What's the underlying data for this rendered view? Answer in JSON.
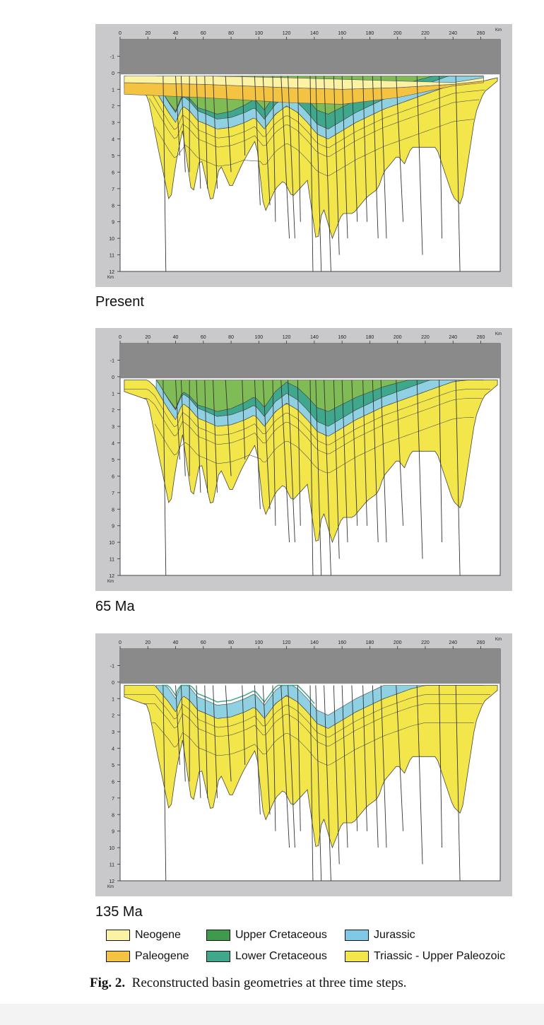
{
  "figure": {
    "axis": {
      "x_ticks": [
        "0",
        "20",
        "40",
        "60",
        "80",
        "100",
        "120",
        "140",
        "160",
        "180",
        "200",
        "220",
        "240",
        "260"
      ],
      "y_ticks": [
        "-1",
        "0",
        "1",
        "2",
        "3",
        "4",
        "5",
        "6",
        "7",
        "8",
        "9",
        "10",
        "11",
        "12"
      ],
      "x_unit": "Km",
      "y_unit": "Km"
    },
    "panels": [
      {
        "id": "present",
        "label": "Present"
      },
      {
        "id": "65ma",
        "label": "65 Ma"
      },
      {
        "id": "135ma",
        "label": "135 Ma"
      }
    ],
    "legend": [
      {
        "label": "Neogene",
        "color": "#fbf3a3"
      },
      {
        "label": "Upper Cretaceous",
        "color": "#3f9a4e"
      },
      {
        "label": "Jurassic",
        "color": "#7fc8e6"
      },
      {
        "label": "Paleogene",
        "color": "#f5c342"
      },
      {
        "label": "Lower Cretaceous",
        "color": "#3fa88c"
      },
      {
        "label": "Triassic - Upper Paleozoic",
        "color": "#f2e64a"
      }
    ],
    "caption_prefix": "Fig. 2.",
    "caption_text": "Reconstructed basin geometries at three time steps.",
    "colors": {
      "sky": "#8a8a8a",
      "frame": "#c9c9cb",
      "triassic": "#f2e64a",
      "jurassic": "#8fd0e2",
      "lower_cretaceous": "#3fa88c",
      "upper_cretaceous": "#7fbc55",
      "paleogene": "#f5c342",
      "neogene": "#fbf3a3"
    }
  }
}
